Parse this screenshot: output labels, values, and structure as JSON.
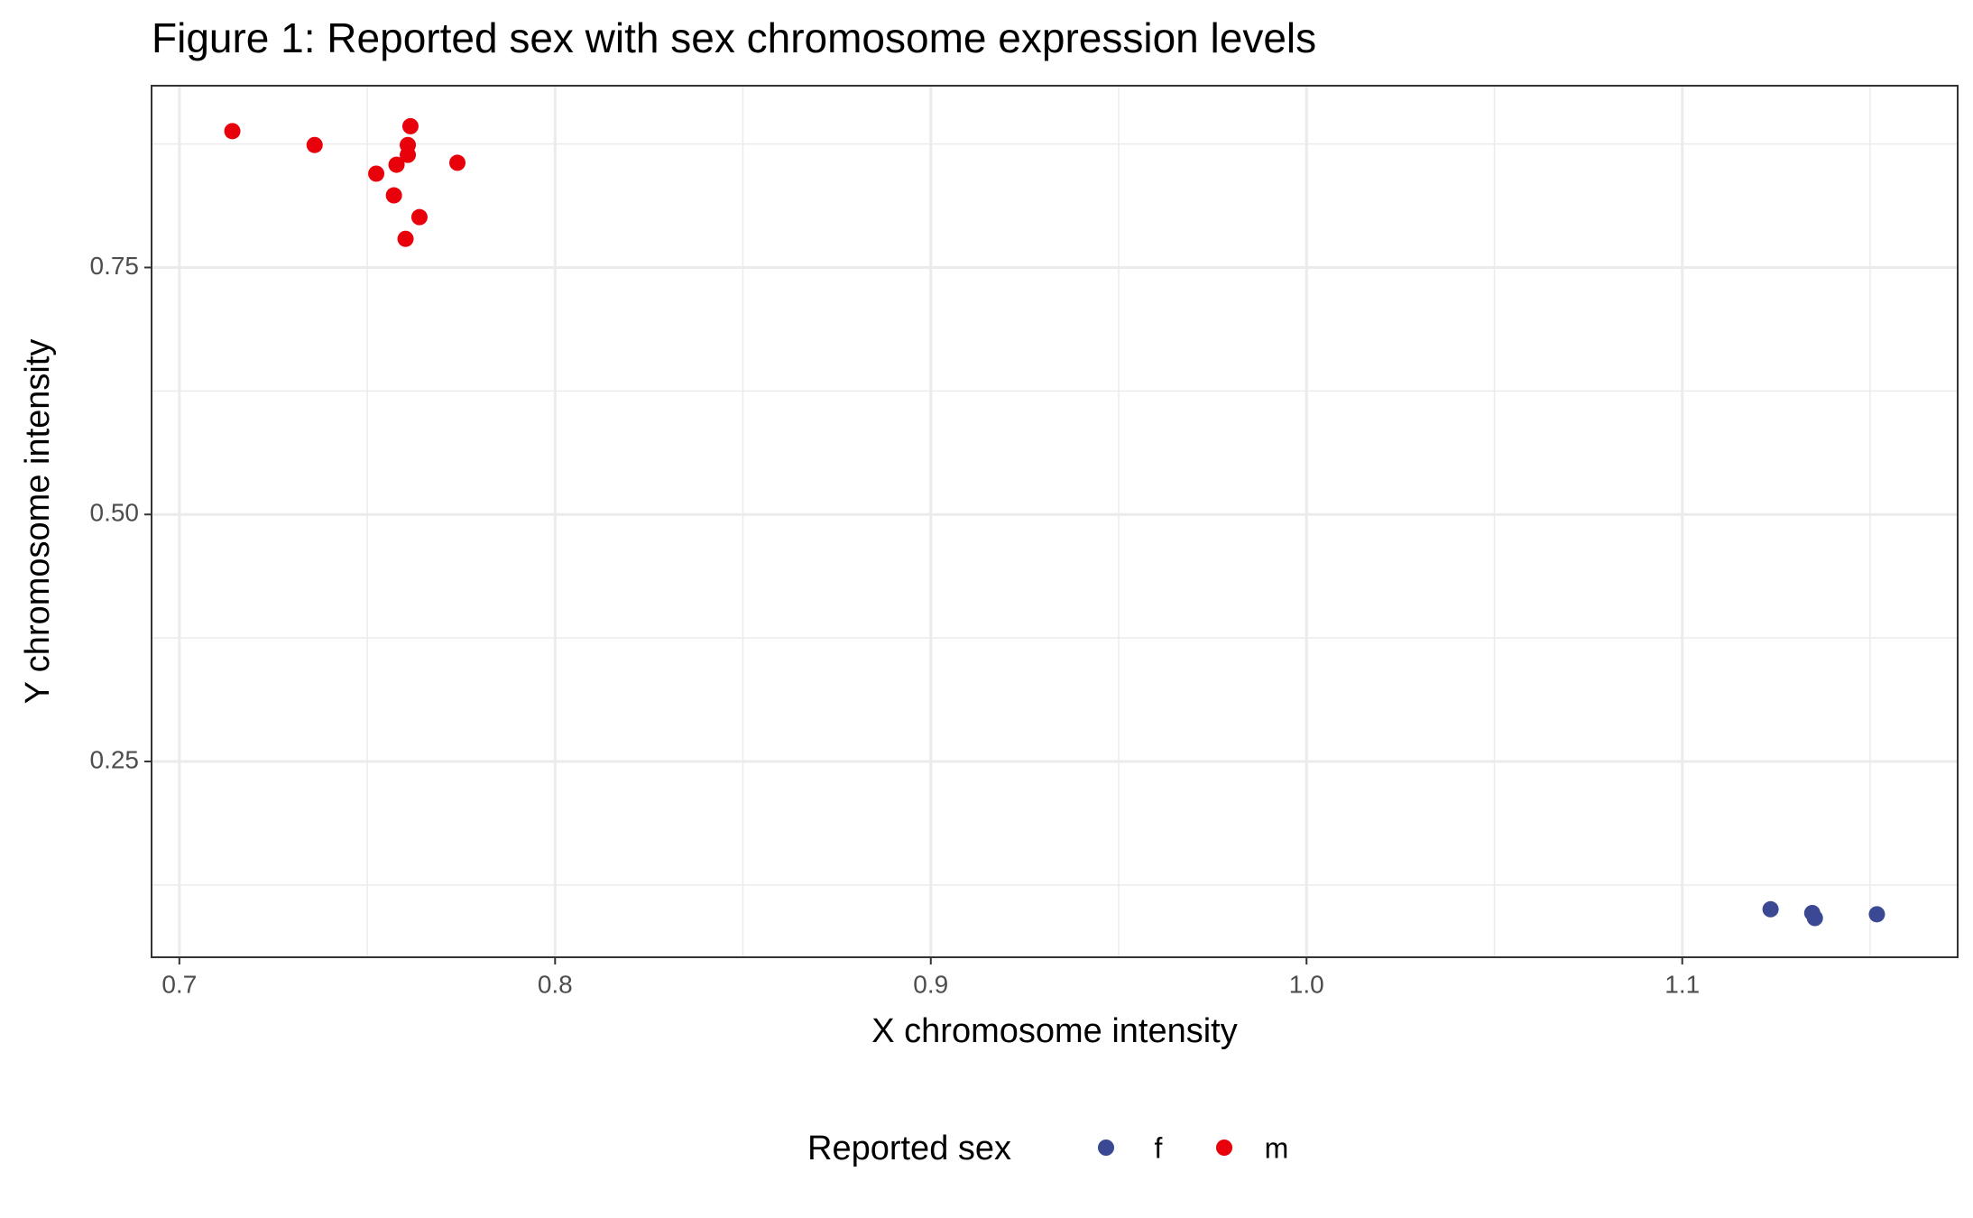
{
  "chart_data": {
    "type": "scatter",
    "title": "Figure 1: Reported sex with sex chromosome expression levels",
    "x_label": "X chromosome intensity",
    "y_label": "Y chromosome intensity",
    "legend_title": "Reported sex",
    "legend_position": "bottom",
    "grid": true,
    "xlim": [
      0.6926,
      1.1733
    ],
    "ylim": [
      0.0518,
      0.934
    ],
    "xticks": [
      0.7,
      0.8,
      0.9,
      {
        "value": 1,
        "label": "1.0"
      },
      1.1
    ],
    "yticks": [
      0.25,
      {
        "value": 0.5,
        "label": "0.50"
      },
      0.75
    ],
    "x_minor_grid": [
      0.75,
      0.85,
      0.95,
      1.05,
      1.15
    ],
    "y_minor_grid": [
      0.125,
      0.375,
      0.625,
      0.875
    ],
    "series": [
      {
        "name": "f",
        "color": "#3b4994",
        "x": [
          1.1235,
          1.1346,
          1.1353,
          1.1518
        ],
        "values": [
          0.1004,
          0.0966,
          0.0915,
          0.0953
        ]
      },
      {
        "name": "m",
        "color": "#e8000b",
        "x": [
          0.7141,
          0.736,
          0.7615,
          0.7608,
          0.7608,
          0.774,
          0.7524,
          0.7578,
          0.7571,
          0.7639,
          0.7602
        ],
        "values": [
          0.888,
          0.874,
          0.893,
          0.874,
          0.864,
          0.856,
          0.845,
          0.854,
          0.823,
          0.801,
          0.779
        ]
      }
    ]
  }
}
